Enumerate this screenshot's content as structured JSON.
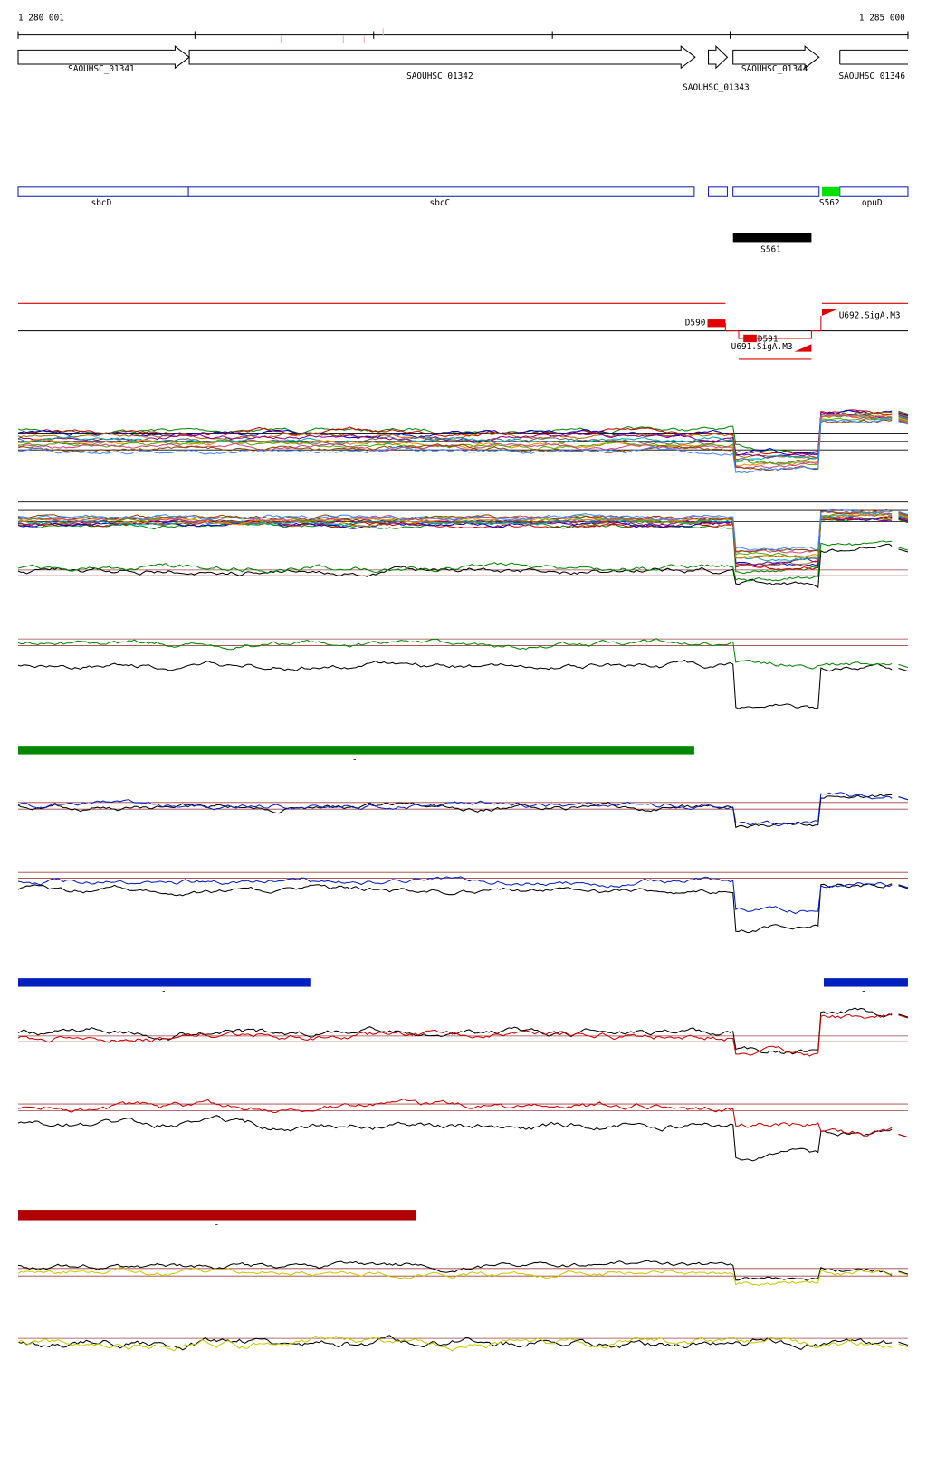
{
  "header": {
    "start": "1 280 001",
    "end": "1 285 000"
  },
  "genes": [
    {
      "label": "SAOUHSC_01341"
    },
    {
      "label": "SAOUHSC_01342"
    },
    {
      "label": "SAOUHSC_01343"
    },
    {
      "label": "SAOUHSC_01344"
    },
    {
      "label": "SAOUHSC_01346"
    }
  ],
  "features": [
    {
      "label": "sbcD"
    },
    {
      "label": "sbcC"
    },
    {
      "label": "S562"
    },
    {
      "label": "opuD"
    },
    {
      "label": "S561"
    }
  ],
  "segments": [
    {
      "label": "D590"
    },
    {
      "label": "D591"
    },
    {
      "label": "U691.SigA.M3"
    },
    {
      "label": "U692.SigA.M3"
    }
  ],
  "markers": [
    "-",
    "-",
    "-",
    "-"
  ]
}
